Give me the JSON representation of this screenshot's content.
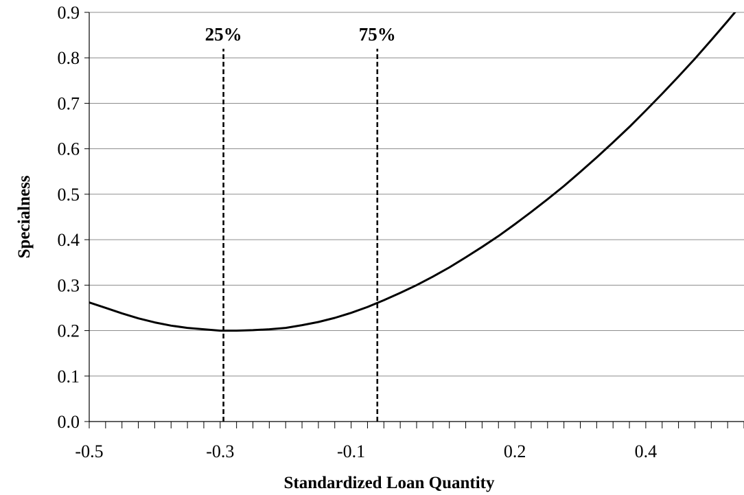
{
  "chart_data": {
    "type": "line",
    "title": "",
    "xlabel": "Standardized Loan Quantity",
    "ylabel": "Specialness",
    "xlim": [
      -0.5,
      0.5
    ],
    "ylim": [
      0.0,
      0.9
    ],
    "grid": "horizontal",
    "legend": "none",
    "y_ticks": [
      "0.0",
      "0.1",
      "0.2",
      "0.3",
      "0.4",
      "0.5",
      "0.6",
      "0.7",
      "0.8",
      "0.9"
    ],
    "x_tick_labels": [
      {
        "label": "-0.5",
        "value": -0.5
      },
      {
        "label": "-0.3",
        "value": -0.3
      },
      {
        "label": "-0.1",
        "value": -0.1
      },
      {
        "label": "0.2",
        "value": 0.15
      },
      {
        "label": "0.4",
        "value": 0.35
      }
    ],
    "x_minor_tick_count": 41,
    "series": [
      {
        "x": [
          -0.5,
          -0.475,
          -0.45,
          -0.425,
          -0.4,
          -0.375,
          -0.35,
          -0.325,
          -0.3,
          -0.275,
          -0.25,
          -0.225,
          -0.2,
          -0.175,
          -0.15,
          -0.125,
          -0.1,
          -0.075,
          -0.05,
          -0.025,
          0.0,
          0.025,
          0.05,
          0.075,
          0.1,
          0.125,
          0.15,
          0.175,
          0.2,
          0.225,
          0.25,
          0.275,
          0.3,
          0.325,
          0.35,
          0.375,
          0.4,
          0.425,
          0.45,
          0.475,
          0.5
        ],
        "y": [
          0.262,
          0.25,
          0.238,
          0.227,
          0.218,
          0.211,
          0.206,
          0.203,
          0.2,
          0.2,
          0.201,
          0.203,
          0.206,
          0.212,
          0.219,
          0.228,
          0.239,
          0.252,
          0.267,
          0.283,
          0.3,
          0.319,
          0.339,
          0.361,
          0.384,
          0.408,
          0.434,
          0.461,
          0.489,
          0.518,
          0.549,
          0.581,
          0.614,
          0.648,
          0.684,
          0.721,
          0.759,
          0.798,
          0.839,
          0.881,
          0.924
        ]
      }
    ],
    "reference_lines": [
      {
        "label": "25%",
        "x": -0.295,
        "ymax": 0.82
      },
      {
        "label": "75%",
        "x": -0.06,
        "ymax": 0.82
      }
    ],
    "colors": {
      "line": "#000000",
      "grid": "#8c8c8c",
      "axis": "#000000",
      "background": "#ffffff"
    }
  }
}
